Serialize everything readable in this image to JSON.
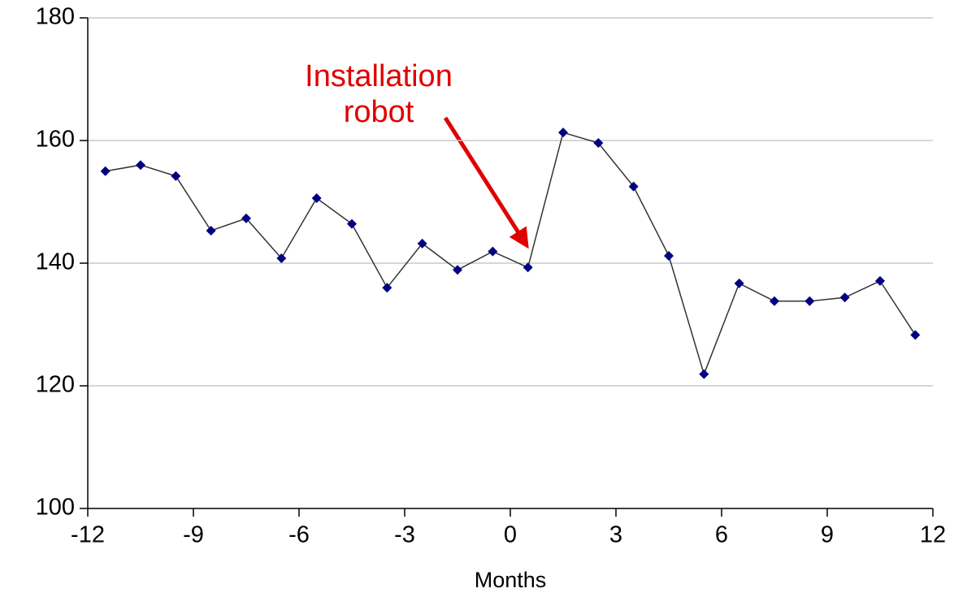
{
  "chart_data": {
    "type": "line",
    "x_label": "Months",
    "x": [
      -11.5,
      -10.5,
      -9.5,
      -8.5,
      -7.5,
      -6.5,
      -5.5,
      -4.5,
      -3.5,
      -2.5,
      -1.5,
      -0.5,
      0.5,
      1.5,
      2.5,
      3.5,
      4.5,
      5.5,
      6.5,
      7.5,
      8.5,
      9.5,
      10.5,
      11.5
    ],
    "values": [
      155.0,
      156.0,
      154.2,
      145.3,
      147.3,
      140.8,
      150.6,
      146.4,
      136.0,
      143.2,
      138.9,
      141.9,
      139.3,
      161.3,
      159.6,
      152.5,
      141.2,
      121.9,
      136.7,
      133.8,
      133.8,
      134.4,
      137.1,
      128.3
    ],
    "color": "#333333",
    "marker_color": "#000080",
    "xlim": [
      -12,
      12
    ],
    "xticks": [
      -12,
      -9,
      -6,
      -3,
      0,
      3,
      6,
      9,
      12
    ],
    "ylim": [
      100,
      180
    ],
    "yticks": [
      100,
      120,
      140,
      160,
      180
    ],
    "grid": true,
    "annotation": {
      "lines": [
        "Installation",
        "robot"
      ],
      "color": "#e00000"
    }
  }
}
